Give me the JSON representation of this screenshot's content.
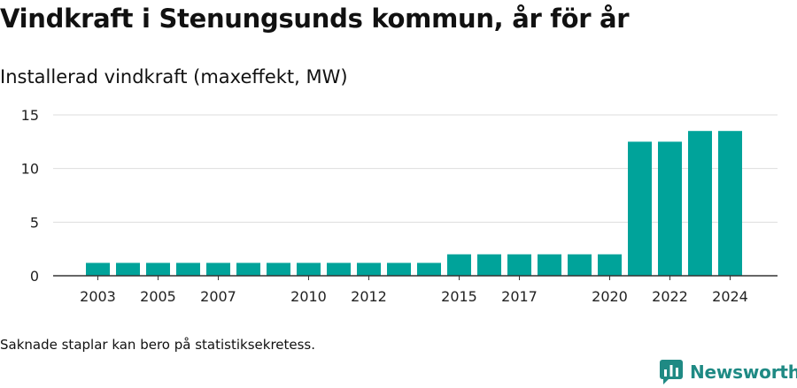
{
  "title": "Vindkraft i Stenungsunds kommun, år för år",
  "subtitle": "Installerad vindkraft (maxeffekt, MW)",
  "footnote": "Saknade staplar kan bero på statistiksekretess.",
  "brand": {
    "name": "Newsworthy",
    "icon": "newsworthy-logo-icon"
  },
  "colors": {
    "bar": "#00a39a",
    "grid": "#dddddd",
    "axis": "#333333",
    "brand": "#1f8a84"
  },
  "chart_data": {
    "type": "bar",
    "title": "Vindkraft i Stenungsunds kommun, år för år",
    "ylabel": "Installerad vindkraft (maxeffekt, MW)",
    "xlabel": "",
    "categories": [
      2003,
      2004,
      2005,
      2006,
      2007,
      2008,
      2009,
      2010,
      2011,
      2012,
      2013,
      2014,
      2015,
      2016,
      2017,
      2018,
      2019,
      2020,
      2021,
      2022,
      2023,
      2024
    ],
    "values": [
      1.2,
      1.2,
      1.2,
      1.2,
      1.2,
      1.2,
      1.2,
      1.2,
      1.2,
      1.2,
      1.2,
      1.2,
      2.0,
      2.0,
      2.0,
      2.0,
      2.0,
      2.0,
      12.5,
      12.5,
      13.5,
      13.5
    ],
    "x_tick_labels": [
      "2003",
      "2005",
      "2007",
      "2010",
      "2012",
      "2015",
      "2017",
      "2020",
      "2022",
      "2024"
    ],
    "y_ticks": [
      0,
      5,
      10,
      15
    ],
    "ylim": [
      0,
      15
    ],
    "grid": true,
    "legend": "none"
  }
}
